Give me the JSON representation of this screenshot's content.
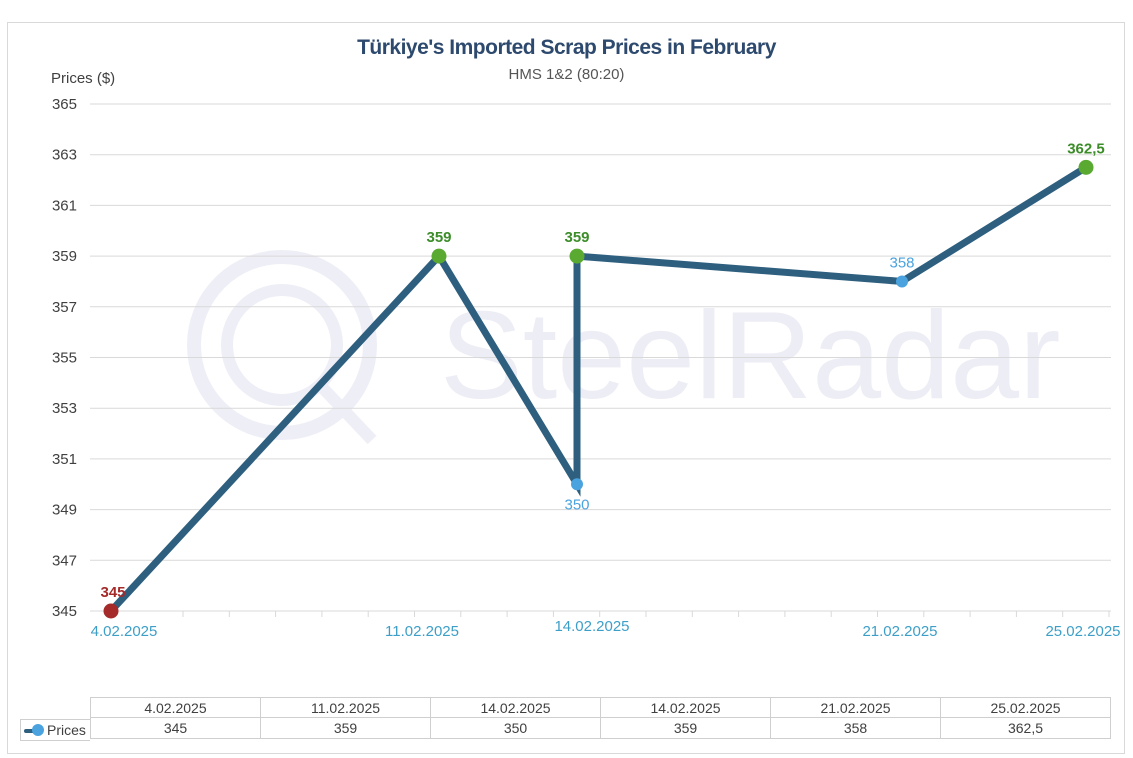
{
  "watermark": {
    "text": "SteelRadar"
  },
  "chart_data": {
    "type": "line",
    "title": "Türkiye's Imported Scrap Prices in February",
    "subtitle": "HMS 1&2 (80:20)",
    "xlabel": "",
    "ylabel": "Prices ($)",
    "ylim": [
      345,
      365
    ],
    "yticks": [
      "365",
      "363",
      "361",
      "359",
      "357",
      "355",
      "353",
      "351",
      "349",
      "347",
      "345"
    ],
    "grid": true,
    "categories": [
      "4.02.2025",
      "11.02.2025",
      "14.02.2025",
      "14.02.2025",
      "21.02.2025",
      "25.02.2025"
    ],
    "series": [
      {
        "name": "Prices",
        "values": [
          345,
          359,
          350,
          359,
          358,
          362.5
        ],
        "value_labels": [
          "345",
          "359",
          "350",
          "359",
          "358",
          "362,5"
        ],
        "point_colors": [
          "#a52a2a",
          "#5aaa32",
          "#4aa3df",
          "#5aaa32",
          "#4aa3df",
          "#5aaa32"
        ],
        "line_color": "#2e5f7f"
      }
    ],
    "x_axis_labels": [
      "4.02.2025",
      "11.02.2025",
      "14.02.2025",
      "21.02.2025",
      "25.02.2025"
    ],
    "legend": "table-left",
    "colors": {
      "line": "#2e5f7f",
      "down": "#a52a2a",
      "up": "#5aaa32",
      "neutral": "#4aa3df",
      "axis_label": "#3d9fc7"
    }
  },
  "table": {
    "row_label": "Prices",
    "headers": [
      "4.02.2025",
      "11.02.2025",
      "14.02.2025",
      "14.02.2025",
      "21.02.2025",
      "25.02.2025"
    ],
    "values": [
      "345",
      "359",
      "350",
      "359",
      "358",
      "362,5"
    ]
  }
}
